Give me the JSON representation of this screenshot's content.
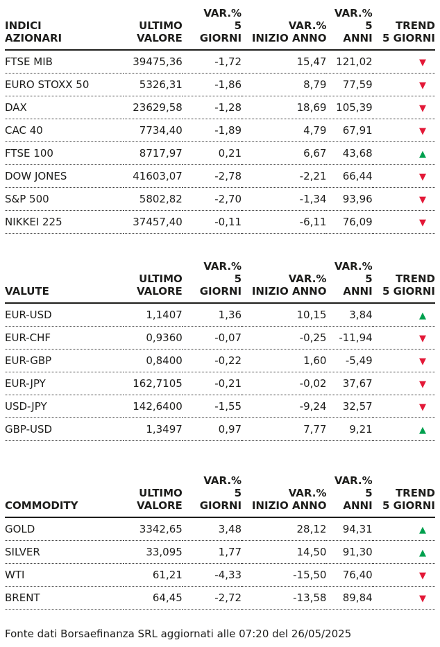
{
  "page": {
    "footer": "Fonte dati Borsaefinanza SRL aggiornati alle 07:20 del 26/05/2025",
    "colors": {
      "text": "#1d1d1b",
      "trend_up": "#00a04e",
      "trend_down": "#e31837"
    },
    "trend_glyphs": {
      "up": "▲",
      "down": "▼"
    }
  },
  "chart_data": [
    {
      "type": "table",
      "title": "INDICI AZIONARI",
      "title_display": "INDICI\nAZIONARI",
      "columns": [
        "ULTIMO\nVALORE",
        "VAR.%\n5 GIORNI",
        "VAR.%\nINIZIO ANNO",
        "VAR.%\n5 ANNI",
        "TREND\n5 GIORNI"
      ],
      "rows": [
        {
          "name": "FTSE MIB",
          "value": "39475,36",
          "var_5d": "-1,72",
          "var_ytd": "15,47",
          "var_5y": "121,02",
          "trend": "down"
        },
        {
          "name": "EURO STOXX 50",
          "value": "5326,31",
          "var_5d": "-1,86",
          "var_ytd": "8,79",
          "var_5y": "77,59",
          "trend": "down"
        },
        {
          "name": "DAX",
          "value": "23629,58",
          "var_5d": "-1,28",
          "var_ytd": "18,69",
          "var_5y": "105,39",
          "trend": "down"
        },
        {
          "name": "CAC 40",
          "value": "7734,40",
          "var_5d": "-1,89",
          "var_ytd": "4,79",
          "var_5y": "67,91",
          "trend": "down"
        },
        {
          "name": "FTSE 100",
          "value": "8717,97",
          "var_5d": "0,21",
          "var_ytd": "6,67",
          "var_5y": "43,68",
          "trend": "up"
        },
        {
          "name": "DOW JONES",
          "value": "41603,07",
          "var_5d": "-2,78",
          "var_ytd": "-2,21",
          "var_5y": "66,44",
          "trend": "down"
        },
        {
          "name": "S&P 500",
          "value": "5802,82",
          "var_5d": "-2,70",
          "var_ytd": "-1,34",
          "var_5y": "93,96",
          "trend": "down"
        },
        {
          "name": "NIKKEI 225",
          "value": "37457,40",
          "var_5d": "-0,11",
          "var_ytd": "-6,11",
          "var_5y": "76,09",
          "trend": "down"
        }
      ]
    },
    {
      "type": "table",
      "title": "VALUTE",
      "title_display": "VALUTE",
      "columns": [
        "ULTIMO\nVALORE",
        "VAR.%\n5 GIORNI",
        "VAR.%\nINIZIO ANNO",
        "VAR.%\n5 ANNI",
        "TREND\n5 GIORNI"
      ],
      "rows": [
        {
          "name": "EUR-USD",
          "value": "1,1407",
          "var_5d": "1,36",
          "var_ytd": "10,15",
          "var_5y": "3,84",
          "trend": "up"
        },
        {
          "name": "EUR-CHF",
          "value": "0,9360",
          "var_5d": "-0,07",
          "var_ytd": "-0,25",
          "var_5y": "-11,94",
          "trend": "down"
        },
        {
          "name": "EUR-GBP",
          "value": "0,8400",
          "var_5d": "-0,22",
          "var_ytd": "1,60",
          "var_5y": "-5,49",
          "trend": "down"
        },
        {
          "name": "EUR-JPY",
          "value": "162,7105",
          "var_5d": "-0,21",
          "var_ytd": "-0,02",
          "var_5y": "37,67",
          "trend": "down"
        },
        {
          "name": "USD-JPY",
          "value": "142,6400",
          "var_5d": "-1,55",
          "var_ytd": "-9,24",
          "var_5y": "32,57",
          "trend": "down"
        },
        {
          "name": "GBP-USD",
          "value": "1,3497",
          "var_5d": "0,97",
          "var_ytd": "7,77",
          "var_5y": "9,21",
          "trend": "up"
        }
      ]
    },
    {
      "type": "table",
      "title": "COMMODITY",
      "title_display": "COMMODITY",
      "columns": [
        "ULTIMO\nVALORE",
        "VAR.%\n5 GIORNI",
        "VAR.%\nINIZIO ANNO",
        "VAR.%\n5 ANNI",
        "TREND\n5 GIORNI"
      ],
      "rows": [
        {
          "name": "GOLD",
          "value": "3342,65",
          "var_5d": "3,48",
          "var_ytd": "28,12",
          "var_5y": "94,31",
          "trend": "up"
        },
        {
          "name": "SILVER",
          "value": "33,095",
          "var_5d": "1,77",
          "var_ytd": "14,50",
          "var_5y": "91,30",
          "trend": "up"
        },
        {
          "name": "WTI",
          "value": "61,21",
          "var_5d": "-4,33",
          "var_ytd": "-15,50",
          "var_5y": "76,40",
          "trend": "down"
        },
        {
          "name": "BRENT",
          "value": "64,45",
          "var_5d": "-2,72",
          "var_ytd": "-13,58",
          "var_5y": "89,84",
          "trend": "down"
        }
      ]
    }
  ]
}
